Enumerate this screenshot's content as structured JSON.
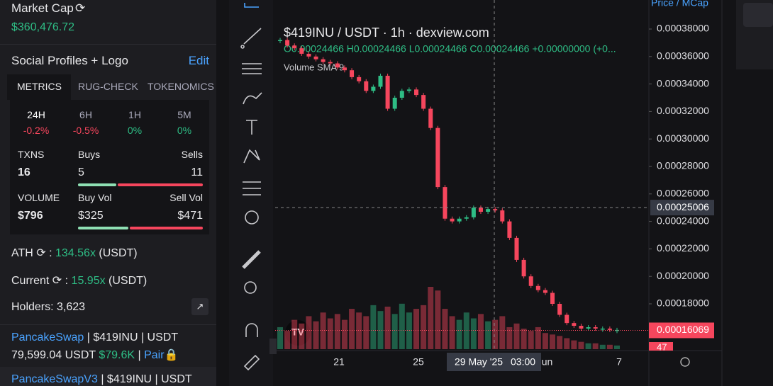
{
  "panel": {
    "market_cap_label": "Market Cap",
    "market_cap_value": "$360,476.72",
    "social_title": "Social Profiles + Logo",
    "edit": "Edit",
    "tabs": [
      "METRICS",
      "RUG-CHECK",
      "TOKENOMICS"
    ],
    "timeframes": [
      {
        "label": "24H",
        "change": "-0.2%"
      },
      {
        "label": "6H",
        "change": "-0.5%"
      },
      {
        "label": "1H",
        "change": "0%"
      },
      {
        "label": "5M",
        "change": "0%"
      }
    ],
    "txns": {
      "label": "TXNS",
      "value": 16,
      "buys_label": "Buys",
      "buys": 5,
      "sells_label": "Sells",
      "sells": 11
    },
    "volume": {
      "label": "VOLUME",
      "value": "$796",
      "buy_label": "Buy Vol",
      "buy": "$325",
      "sell_label": "Sell Vol",
      "sell": "$471"
    },
    "ath_label": "ATH",
    "ath_value": "134.56x",
    "current_label": "Current",
    "current_value": "15.95x",
    "unit": "(USDT)",
    "holders": "Holders: 3,623",
    "pair1": {
      "dex": "PancakeSwap",
      "rest": "| $419INU | USDT",
      "liquidity": "79,599.04 USDT",
      "liq_short": "$79.6K",
      "pair": "Pair"
    },
    "pair2": {
      "dex": "PancakeSwapV3",
      "rest": "| $419INU | USDT"
    }
  },
  "chart_data": {
    "type": "candlestick",
    "title": "$419INU / USDT · 1h · dexview.com",
    "ohlc": "O0.00024466 H0.00024466 L0.00024466 C0.00024466 +0.00000000 (+0...",
    "volume_label": "Volume SMA 9",
    "toolbar": "Price / MCap",
    "values": [
      0.000372,
      0.000368,
      0.000366,
      0.000362,
      0.00036,
      0.000358,
      0.000356,
      0.000355,
      0.000352,
      0.00035,
      0.000345,
      0.000342,
      0.000335,
      0.000338,
      0.000346,
      0.000322,
      0.00033,
      0.000335,
      0.000336,
      0.000332,
      0.000322,
      0.000308,
      0.000265,
      0.000242,
      0.00024,
      0.000242,
      0.000243,
      0.00025,
      0.000247,
      0.000249,
      0.000248,
      0.00024,
      0.000228,
      0.000212,
      0.0002,
      0.000193,
      0.00019,
      0.000188,
      0.00018,
      0.000172,
      0.000166,
      0.000164,
      0.000162,
      0.000163,
      0.000162,
      0.000162,
      0.000161,
      0.000161
    ],
    "volume": [
      30,
      25,
      40,
      35,
      45,
      38,
      50,
      42,
      48,
      40,
      55,
      50,
      45,
      60,
      52,
      58,
      48,
      62,
      50,
      55,
      60,
      85,
      80,
      55,
      45,
      40,
      50,
      42,
      48,
      38,
      40,
      45,
      30,
      35,
      28,
      25,
      30,
      22,
      20,
      18,
      15,
      12,
      10,
      8,
      8,
      6,
      6,
      5
    ],
    "ylim": [
      0.00015,
      0.00039
    ],
    "yticks": [
      {
        "value": 0.00018,
        "label": "0.00018000"
      },
      {
        "value": 0.0002,
        "label": "0.00020000"
      },
      {
        "value": 0.00022,
        "label": "0.00022000"
      },
      {
        "value": 0.00024,
        "label": "0.00024000"
      },
      {
        "value": 0.00026,
        "label": "0.00026000"
      },
      {
        "value": 0.00028,
        "label": "0.00028000"
      },
      {
        "value": 0.0003,
        "label": "0.00030000"
      },
      {
        "value": 0.00032,
        "label": "0.00032000"
      },
      {
        "value": 0.00034,
        "label": "0.00034000"
      },
      {
        "value": 0.00036,
        "label": "0.00036000"
      },
      {
        "value": 0.00038,
        "label": "0.00038000"
      }
    ],
    "crosshair": {
      "value": 0.00025006,
      "label": "0.00025006",
      "time": "29 May '25",
      "hour": "03:00"
    },
    "last_price": {
      "value": 0.00016069,
      "label": "0.00016069"
    },
    "volume_tag": "47",
    "time_labels": [
      "21",
      "25",
      "Jun",
      "7"
    ],
    "up_color": "#2ebd85",
    "down_color": "#f6465d"
  }
}
